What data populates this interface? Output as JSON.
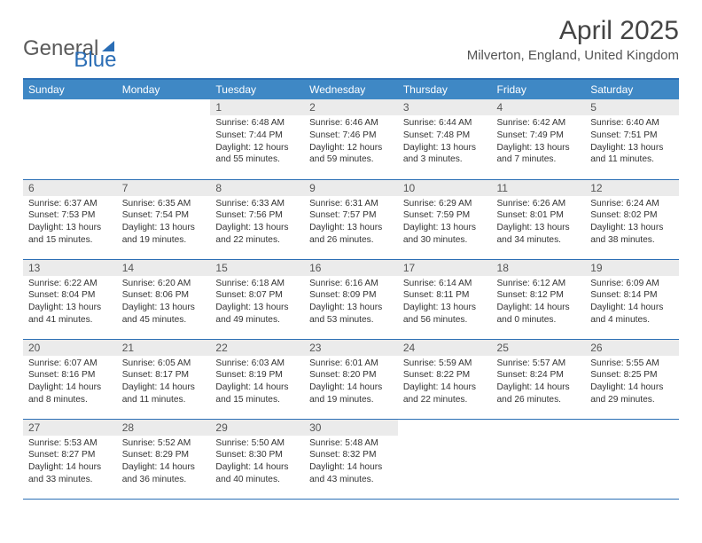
{
  "logo": {
    "text1": "General",
    "text2": "Blue"
  },
  "title": "April 2025",
  "location": "Milverton, England, United Kingdom",
  "header_bg": "#3f88c5",
  "border_color": "#2c6fb5",
  "day_bg": "#ebebeb",
  "colors": {
    "text": "#333333",
    "muted": "#555555"
  },
  "weekdays": [
    "Sunday",
    "Monday",
    "Tuesday",
    "Wednesday",
    "Thursday",
    "Friday",
    "Saturday"
  ],
  "weeks": [
    [
      null,
      null,
      {
        "n": "1",
        "sr": "6:48 AM",
        "ss": "7:44 PM",
        "dl": "12 hours and 55 minutes."
      },
      {
        "n": "2",
        "sr": "6:46 AM",
        "ss": "7:46 PM",
        "dl": "12 hours and 59 minutes."
      },
      {
        "n": "3",
        "sr": "6:44 AM",
        "ss": "7:48 PM",
        "dl": "13 hours and 3 minutes."
      },
      {
        "n": "4",
        "sr": "6:42 AM",
        "ss": "7:49 PM",
        "dl": "13 hours and 7 minutes."
      },
      {
        "n": "5",
        "sr": "6:40 AM",
        "ss": "7:51 PM",
        "dl": "13 hours and 11 minutes."
      }
    ],
    [
      {
        "n": "6",
        "sr": "6:37 AM",
        "ss": "7:53 PM",
        "dl": "13 hours and 15 minutes."
      },
      {
        "n": "7",
        "sr": "6:35 AM",
        "ss": "7:54 PM",
        "dl": "13 hours and 19 minutes."
      },
      {
        "n": "8",
        "sr": "6:33 AM",
        "ss": "7:56 PM",
        "dl": "13 hours and 22 minutes."
      },
      {
        "n": "9",
        "sr": "6:31 AM",
        "ss": "7:57 PM",
        "dl": "13 hours and 26 minutes."
      },
      {
        "n": "10",
        "sr": "6:29 AM",
        "ss": "7:59 PM",
        "dl": "13 hours and 30 minutes."
      },
      {
        "n": "11",
        "sr": "6:26 AM",
        "ss": "8:01 PM",
        "dl": "13 hours and 34 minutes."
      },
      {
        "n": "12",
        "sr": "6:24 AM",
        "ss": "8:02 PM",
        "dl": "13 hours and 38 minutes."
      }
    ],
    [
      {
        "n": "13",
        "sr": "6:22 AM",
        "ss": "8:04 PM",
        "dl": "13 hours and 41 minutes."
      },
      {
        "n": "14",
        "sr": "6:20 AM",
        "ss": "8:06 PM",
        "dl": "13 hours and 45 minutes."
      },
      {
        "n": "15",
        "sr": "6:18 AM",
        "ss": "8:07 PM",
        "dl": "13 hours and 49 minutes."
      },
      {
        "n": "16",
        "sr": "6:16 AM",
        "ss": "8:09 PM",
        "dl": "13 hours and 53 minutes."
      },
      {
        "n": "17",
        "sr": "6:14 AM",
        "ss": "8:11 PM",
        "dl": "13 hours and 56 minutes."
      },
      {
        "n": "18",
        "sr": "6:12 AM",
        "ss": "8:12 PM",
        "dl": "14 hours and 0 minutes."
      },
      {
        "n": "19",
        "sr": "6:09 AM",
        "ss": "8:14 PM",
        "dl": "14 hours and 4 minutes."
      }
    ],
    [
      {
        "n": "20",
        "sr": "6:07 AM",
        "ss": "8:16 PM",
        "dl": "14 hours and 8 minutes."
      },
      {
        "n": "21",
        "sr": "6:05 AM",
        "ss": "8:17 PM",
        "dl": "14 hours and 11 minutes."
      },
      {
        "n": "22",
        "sr": "6:03 AM",
        "ss": "8:19 PM",
        "dl": "14 hours and 15 minutes."
      },
      {
        "n": "23",
        "sr": "6:01 AM",
        "ss": "8:20 PM",
        "dl": "14 hours and 19 minutes."
      },
      {
        "n": "24",
        "sr": "5:59 AM",
        "ss": "8:22 PM",
        "dl": "14 hours and 22 minutes."
      },
      {
        "n": "25",
        "sr": "5:57 AM",
        "ss": "8:24 PM",
        "dl": "14 hours and 26 minutes."
      },
      {
        "n": "26",
        "sr": "5:55 AM",
        "ss": "8:25 PM",
        "dl": "14 hours and 29 minutes."
      }
    ],
    [
      {
        "n": "27",
        "sr": "5:53 AM",
        "ss": "8:27 PM",
        "dl": "14 hours and 33 minutes."
      },
      {
        "n": "28",
        "sr": "5:52 AM",
        "ss": "8:29 PM",
        "dl": "14 hours and 36 minutes."
      },
      {
        "n": "29",
        "sr": "5:50 AM",
        "ss": "8:30 PM",
        "dl": "14 hours and 40 minutes."
      },
      {
        "n": "30",
        "sr": "5:48 AM",
        "ss": "8:32 PM",
        "dl": "14 hours and 43 minutes."
      },
      null,
      null,
      null
    ]
  ],
  "labels": {
    "sunrise": "Sunrise: ",
    "sunset": "Sunset: ",
    "daylight": "Daylight: "
  }
}
